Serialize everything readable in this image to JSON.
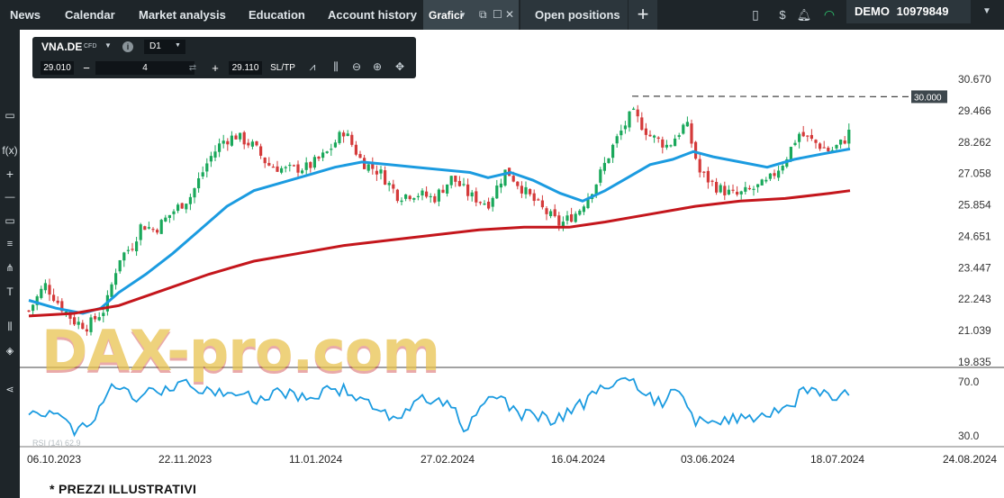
{
  "topbar": {
    "tabs": [
      {
        "label": "News"
      },
      {
        "label": "Calendar"
      },
      {
        "label": "Market analysis"
      },
      {
        "label": "Education"
      },
      {
        "label": "Account history"
      }
    ],
    "active_tab": {
      "label": "Grafici"
    },
    "open_positions": {
      "label": "Open positions"
    },
    "add_tab_symbol": "+",
    "account": {
      "mode": "DEMO",
      "number": "10979849"
    },
    "icons": [
      "layout-icon",
      "currency-icon",
      "bell-icon",
      "wifi-icon",
      "chevron-down-icon"
    ]
  },
  "toolbar": {
    "symbol": "VNA.DE",
    "symbol_type": "CFD",
    "info_icon": "i",
    "timeframe": "D1",
    "bid": "29.010",
    "quantity": "4",
    "ask": "29.110",
    "sltp": "SL/TP"
  },
  "price_axis": {
    "labels": [
      "30.670",
      "29.466",
      "28.262",
      "27.058",
      "25.854",
      "24.651",
      "23.447",
      "22.243",
      "21.039",
      "19.835"
    ],
    "current_level": "30.000"
  },
  "rsi_axis": {
    "labels": [
      "70.0",
      "30.0"
    ]
  },
  "indicator_legend": {
    "rsi": "RSI (14) 62.9"
  },
  "time_axis": {
    "labels": [
      "06.10.2023",
      "22.11.2023",
      "11.01.2024",
      "27.02.2024",
      "16.04.2024",
      "03.06.2024",
      "18.07.2024",
      "24.08.2024"
    ]
  },
  "watermark": "DAX-pro.com",
  "footer_note": "* PREZZI ILLUSTRATIVI",
  "colors": {
    "up": "#1aa85b",
    "down": "#d43a3a",
    "ma_fast": "#1b9be0",
    "ma_slow": "#c4161c",
    "rsi": "#1b9be0",
    "bar_bg": "#1e2529"
  }
}
